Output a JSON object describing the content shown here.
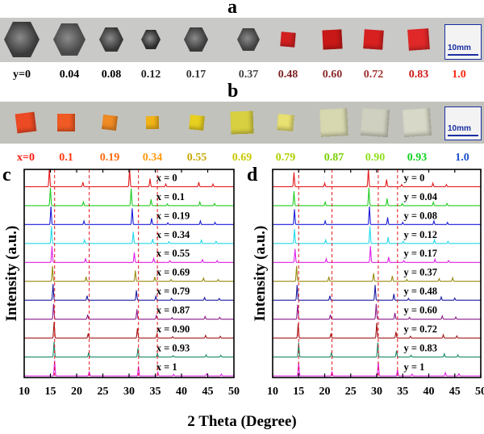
{
  "panel_a": {
    "letter": "a",
    "labels": [
      "y=0",
      "0.04",
      "0.08",
      "0.12",
      "0.17",
      "0.37",
      "0.48",
      "0.60",
      "0.72",
      "0.83",
      "1.0"
    ],
    "label_colors": [
      "#000000",
      "#000000",
      "#000000",
      "#222222",
      "#333333",
      "#444444",
      "#7a1f1f",
      "#8a2a2a",
      "#a03030",
      "#d01818",
      "#ff2a10"
    ],
    "crystal_colors": [
      "#3a3a3a",
      "#4a4a4a",
      "#383838",
      "#2c2c2c",
      "#3c3c3c",
      "#404040",
      "#d22020",
      "#c81818",
      "#d82020",
      "#e02828",
      "#f04a20"
    ],
    "scale_bar": "10mm"
  },
  "panel_b": {
    "letter": "b",
    "labels": [
      "x=0",
      "0.1",
      "0.19",
      "0.34",
      "0.55",
      "0.69",
      "0.79",
      "0.87",
      "0.90",
      "0.93",
      "1.0"
    ],
    "label_colors": [
      "#ff1a10",
      "#ff3a10",
      "#ff6a10",
      "#ff9a10",
      "#c8a800",
      "#c8c800",
      "#b0d000",
      "#7ad000",
      "#90e020",
      "#10d020",
      "#1a50d0"
    ],
    "crystal_colors": [
      "#ec4a24",
      "#f05a24",
      "#f08a24",
      "#f2b418",
      "#e8d020",
      "#d8d040",
      "#e8e070",
      "#d8d8b0",
      "#d0d0c0",
      "#d8d8c8",
      "#c8c8c8"
    ],
    "scale_bar": "10mm"
  },
  "chart_data": [
    {
      "type": "line",
      "panel": "c",
      "xlabel": "2 Theta (Degree)",
      "ylabel": "Intensity (a.u.)",
      "xlim": [
        10,
        50
      ],
      "x_ticks": [
        "10",
        "15",
        "20",
        "25",
        "30",
        "35",
        "40",
        "45",
        "50"
      ],
      "reference_lines_x": [
        15.8,
        22.4,
        31.8,
        35.4
      ],
      "series": [
        {
          "name": "x = 0",
          "color": "#e41a1c",
          "peaks": [
            [
              14.8,
              1.0
            ],
            [
              21.2,
              0.25
            ],
            [
              30.1,
              1.0
            ],
            [
              34.0,
              0.45
            ],
            [
              37.0,
              0.15
            ],
            [
              43.3,
              0.25
            ],
            [
              46.0,
              0.15
            ]
          ]
        },
        {
          "name": "x = 0.1",
          "color": "#22cc22",
          "peaks": [
            [
              15.0,
              1.0
            ],
            [
              21.3,
              0.2
            ],
            [
              30.4,
              0.95
            ],
            [
              34.2,
              0.35
            ],
            [
              37.3,
              0.1
            ],
            [
              43.5,
              0.2
            ],
            [
              46.3,
              0.12
            ]
          ]
        },
        {
          "name": "x = 0.19",
          "color": "#1a1ad8",
          "peaks": [
            [
              15.1,
              1.0
            ],
            [
              21.4,
              0.2
            ],
            [
              30.6,
              0.9
            ],
            [
              34.3,
              0.35
            ],
            [
              37.4,
              0.1
            ],
            [
              43.6,
              0.2
            ],
            [
              46.4,
              0.12
            ]
          ]
        },
        {
          "name": "x = 0.34",
          "color": "#22d8e8",
          "peaks": [
            [
              15.2,
              0.95
            ],
            [
              21.5,
              0.2
            ],
            [
              30.8,
              0.65
            ],
            [
              34.5,
              0.25
            ],
            [
              37.6,
              0.1
            ],
            [
              43.8,
              0.18
            ],
            [
              46.6,
              0.12
            ]
          ]
        },
        {
          "name": "x = 0.55",
          "color": "#e020e8",
          "peaks": [
            [
              15.3,
              0.9
            ],
            [
              21.7,
              0.2
            ],
            [
              31.0,
              0.55
            ],
            [
              34.7,
              0.22
            ],
            [
              37.8,
              0.1
            ],
            [
              44.0,
              0.15
            ],
            [
              46.8,
              0.1
            ]
          ]
        },
        {
          "name": "x = 0.69",
          "color": "#9a8a10",
          "peaks": [
            [
              15.4,
              0.85
            ],
            [
              21.8,
              0.25
            ],
            [
              31.2,
              0.6
            ],
            [
              34.9,
              0.25
            ],
            [
              38.0,
              0.1
            ],
            [
              44.2,
              0.18
            ],
            [
              47.0,
              0.1
            ]
          ]
        },
        {
          "name": "x = 0.79",
          "color": "#1a1aa0",
          "peaks": [
            [
              15.5,
              0.9
            ],
            [
              22.0,
              0.25
            ],
            [
              31.4,
              0.55
            ],
            [
              35.1,
              0.22
            ],
            [
              38.1,
              0.1
            ],
            [
              44.4,
              0.15
            ],
            [
              47.2,
              0.1
            ]
          ]
        },
        {
          "name": "x = 0.87",
          "color": "#8a1a8a",
          "peaks": [
            [
              15.6,
              0.85
            ],
            [
              22.1,
              0.25
            ],
            [
              31.5,
              0.55
            ],
            [
              35.2,
              0.2
            ],
            [
              38.2,
              0.08
            ],
            [
              44.5,
              0.15
            ],
            [
              47.3,
              0.1
            ]
          ]
        },
        {
          "name": "x = 0.90",
          "color": "#a01818",
          "peaks": [
            [
              15.7,
              0.9
            ],
            [
              22.2,
              0.25
            ],
            [
              31.6,
              0.55
            ],
            [
              35.3,
              0.2
            ],
            [
              38.3,
              0.08
            ],
            [
              44.6,
              0.15
            ],
            [
              47.4,
              0.1
            ]
          ]
        },
        {
          "name": "x = 0.93",
          "color": "#1a8a6a",
          "peaks": [
            [
              15.7,
              0.85
            ],
            [
              22.3,
              0.25
            ],
            [
              31.7,
              0.5
            ],
            [
              35.4,
              0.2
            ],
            [
              38.4,
              0.08
            ],
            [
              44.7,
              0.12
            ],
            [
              47.5,
              0.1
            ]
          ]
        },
        {
          "name": "x = 1",
          "color": "#e020e8",
          "peaks": [
            [
              15.8,
              0.85
            ],
            [
              22.4,
              0.25
            ],
            [
              31.8,
              0.55
            ],
            [
              35.5,
              0.2
            ],
            [
              38.5,
              0.08
            ],
            [
              44.8,
              0.12
            ],
            [
              47.6,
              0.1
            ]
          ]
        }
      ]
    },
    {
      "type": "line",
      "panel": "d",
      "xlabel": "",
      "ylabel": "Intensity (a.u.)",
      "xlim": [
        10,
        50
      ],
      "x_ticks": [
        "10",
        "15",
        "20",
        "25",
        "30",
        "35",
        "40",
        "45",
        "50"
      ],
      "reference_lines_x": [
        15.0,
        21.4,
        30.3,
        34.0
      ],
      "series": [
        {
          "name": "y = 0",
          "color": "#e41a1c",
          "peaks": [
            [
              14.1,
              0.8
            ],
            [
              20.0,
              0.2
            ],
            [
              28.4,
              1.0
            ],
            [
              31.9,
              0.4
            ],
            [
              34.8,
              0.12
            ],
            [
              40.8,
              0.2
            ],
            [
              43.4,
              0.12
            ]
          ]
        },
        {
          "name": "y = 0.04",
          "color": "#22cc22",
          "peaks": [
            [
              14.1,
              0.8
            ],
            [
              20.1,
              0.2
            ],
            [
              28.5,
              1.0
            ],
            [
              32.0,
              0.4
            ],
            [
              34.9,
              0.12
            ],
            [
              40.9,
              0.2
            ],
            [
              43.5,
              0.12
            ]
          ]
        },
        {
          "name": "y = 0.08",
          "color": "#1a1ad8",
          "peaks": [
            [
              14.2,
              0.85
            ],
            [
              20.1,
              0.2
            ],
            [
              28.6,
              1.0
            ],
            [
              32.1,
              0.4
            ],
            [
              35.0,
              0.12
            ],
            [
              41.0,
              0.2
            ],
            [
              43.6,
              0.12
            ]
          ]
        },
        {
          "name": "y = 0.12",
          "color": "#22d8e8",
          "peaks": [
            [
              14.2,
              0.8
            ],
            [
              20.2,
              0.2
            ],
            [
              28.7,
              0.95
            ],
            [
              32.2,
              0.35
            ],
            [
              35.1,
              0.12
            ],
            [
              41.1,
              0.2
            ],
            [
              43.7,
              0.12
            ]
          ]
        },
        {
          "name": "y = 0.17",
          "color": "#e020e8",
          "peaks": [
            [
              14.3,
              0.75
            ],
            [
              20.3,
              0.2
            ],
            [
              28.8,
              0.9
            ],
            [
              32.3,
              0.3
            ],
            [
              35.2,
              0.1
            ],
            [
              41.2,
              0.18
            ],
            [
              43.8,
              0.1
            ]
          ]
        },
        {
          "name": "y = 0.37",
          "color": "#9a8a10",
          "peaks": [
            [
              14.6,
              0.85
            ],
            [
              20.8,
              0.25
            ],
            [
              29.4,
              0.45
            ],
            [
              33.0,
              0.3
            ],
            [
              35.8,
              0.1
            ],
            [
              42.0,
              0.15
            ],
            [
              44.6,
              0.2
            ]
          ]
        },
        {
          "name": "y = 0.48",
          "color": "#1a1aa0",
          "peaks": [
            [
              14.7,
              0.85
            ],
            [
              21.0,
              0.25
            ],
            [
              29.7,
              0.85
            ],
            [
              33.3,
              0.35
            ],
            [
              36.1,
              0.1
            ],
            [
              42.4,
              0.18
            ],
            [
              45.0,
              0.12
            ]
          ]
        },
        {
          "name": "y = 0.60",
          "color": "#8a1a8a",
          "peaks": [
            [
              14.8,
              0.8
            ],
            [
              21.1,
              0.25
            ],
            [
              29.9,
              0.85
            ],
            [
              33.5,
              0.35
            ],
            [
              36.3,
              0.1
            ],
            [
              42.6,
              0.18
            ],
            [
              45.2,
              0.12
            ]
          ]
        },
        {
          "name": "y = 0.72",
          "color": "#a01818",
          "peaks": [
            [
              14.9,
              0.8
            ],
            [
              21.2,
              0.25
            ],
            [
              30.0,
              0.85
            ],
            [
              33.7,
              0.35
            ],
            [
              36.5,
              0.1
            ],
            [
              42.8,
              0.18
            ],
            [
              45.4,
              0.12
            ]
          ]
        },
        {
          "name": "y = 0.83",
          "color": "#1a8a6a",
          "peaks": [
            [
              15.0,
              0.8
            ],
            [
              21.3,
              0.25
            ],
            [
              30.2,
              0.8
            ],
            [
              33.8,
              0.35
            ],
            [
              36.6,
              0.1
            ],
            [
              43.0,
              0.18
            ],
            [
              45.6,
              0.12
            ]
          ]
        },
        {
          "name": "y = 1",
          "color": "#e020e8",
          "peaks": [
            [
              15.0,
              0.75
            ],
            [
              21.4,
              0.25
            ],
            [
              30.3,
              0.8
            ],
            [
              34.0,
              0.35
            ],
            [
              36.8,
              0.1
            ],
            [
              43.2,
              0.18
            ],
            [
              45.8,
              0.12
            ]
          ]
        }
      ]
    }
  ]
}
